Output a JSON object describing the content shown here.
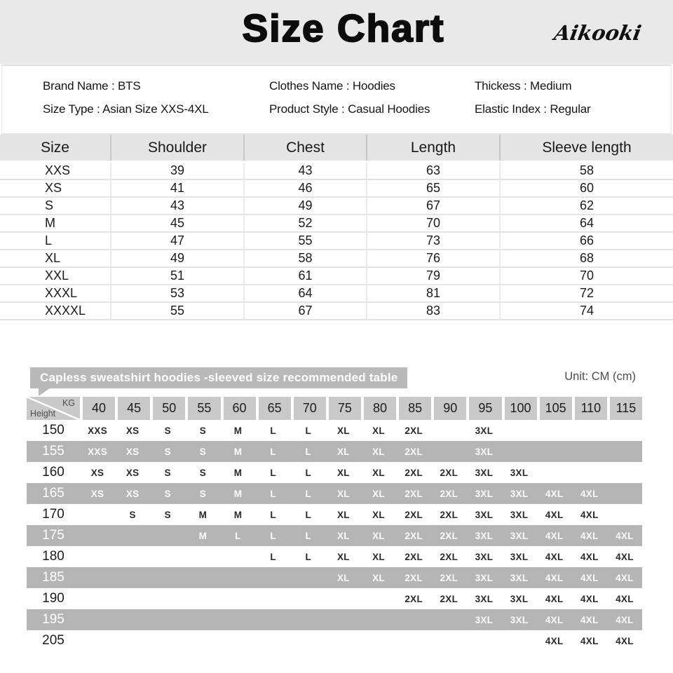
{
  "header": {
    "title": "Size Chart",
    "brand_logo": "Aikooki"
  },
  "product_info": {
    "lines": [
      "Brand Name : BTS",
      "Clothes Name : Hoodies",
      "Thickess : Medium",
      "Size Type : Asian Size XXS-4XL",
      "Product Style : Casual Hoodies",
      "Elastic Index : Regular"
    ]
  },
  "size_table": {
    "headers": [
      "Size",
      "Shoulder",
      "Chest",
      "Length",
      "Sleeve length"
    ],
    "rows": [
      [
        "XXS",
        "39",
        "43",
        "63",
        "58"
      ],
      [
        "XS",
        "41",
        "46",
        "65",
        "60"
      ],
      [
        "S",
        "43",
        "49",
        "67",
        "62"
      ],
      [
        "M",
        "45",
        "52",
        "70",
        "64"
      ],
      [
        "L",
        "47",
        "55",
        "73",
        "66"
      ],
      [
        "XL",
        "49",
        "58",
        "76",
        "68"
      ],
      [
        "XXL",
        "51",
        "61",
        "79",
        "70"
      ],
      [
        "XXXL",
        "53",
        "64",
        "81",
        "72"
      ],
      [
        "XXXXL",
        "55",
        "67",
        "83",
        "74"
      ]
    ]
  },
  "recommend_table": {
    "title": "Capless sweatshirt hoodies -sleeved size recommended table",
    "unit": "Unit: CM (cm)",
    "corner": {
      "top": "KG",
      "bottom": "Height"
    },
    "weight_columns": [
      "40",
      "45",
      "50",
      "55",
      "60",
      "65",
      "70",
      "75",
      "80",
      "85",
      "90",
      "95",
      "100",
      "105",
      "110",
      "115"
    ],
    "rows": [
      {
        "height": "150",
        "cells": [
          "XXS",
          "XS",
          "S",
          "S",
          "M",
          "L",
          "L",
          "XL",
          "XL",
          "2XL",
          "",
          "3XL",
          "",
          "",
          "",
          ""
        ]
      },
      {
        "height": "155",
        "cells": [
          "XXS",
          "XS",
          "S",
          "S",
          "M",
          "L",
          "L",
          "XL",
          "XL",
          "2XL",
          "",
          "3XL",
          "",
          "",
          "",
          ""
        ]
      },
      {
        "height": "160",
        "cells": [
          "XS",
          "XS",
          "S",
          "S",
          "M",
          "L",
          "L",
          "XL",
          "XL",
          "2XL",
          "2XL",
          "3XL",
          "3XL",
          "",
          "",
          ""
        ]
      },
      {
        "height": "165",
        "cells": [
          "XS",
          "XS",
          "S",
          "S",
          "M",
          "L",
          "L",
          "XL",
          "XL",
          "2XL",
          "2XL",
          "3XL",
          "3XL",
          "4XL",
          "4XL",
          ""
        ]
      },
      {
        "height": "170",
        "cells": [
          "",
          "S",
          "S",
          "M",
          "M",
          "L",
          "L",
          "XL",
          "XL",
          "2XL",
          "2XL",
          "3XL",
          "3XL",
          "4XL",
          "4XL",
          ""
        ]
      },
      {
        "height": "175",
        "cells": [
          "",
          "",
          "",
          "M",
          "L",
          "L",
          "L",
          "XL",
          "XL",
          "2XL",
          "2XL",
          "3XL",
          "3XL",
          "4XL",
          "4XL",
          "4XL"
        ]
      },
      {
        "height": "180",
        "cells": [
          "",
          "",
          "",
          "",
          "",
          "L",
          "L",
          "XL",
          "XL",
          "2XL",
          "2XL",
          "3XL",
          "3XL",
          "4XL",
          "4XL",
          "4XL"
        ]
      },
      {
        "height": "185",
        "cells": [
          "",
          "",
          "",
          "",
          "",
          "",
          "",
          "XL",
          "XL",
          "2XL",
          "2XL",
          "3XL",
          "3XL",
          "4XL",
          "4XL",
          "4XL"
        ]
      },
      {
        "height": "190",
        "cells": [
          "",
          "",
          "",
          "",
          "",
          "",
          "",
          "",
          "",
          "2XL",
          "2XL",
          "3XL",
          "3XL",
          "4XL",
          "4XL",
          "4XL"
        ]
      },
      {
        "height": "195",
        "cells": [
          "",
          "",
          "",
          "",
          "",
          "",
          "",
          "",
          "",
          "",
          "",
          "3XL",
          "3XL",
          "4XL",
          "4XL",
          "4XL"
        ]
      },
      {
        "height": "205",
        "cells": [
          "",
          "",
          "",
          "",
          "",
          "",
          "",
          "",
          "",
          "",
          "",
          "",
          "",
          "4XL",
          "4XL",
          "4XL"
        ]
      }
    ]
  },
  "colors": {
    "page_band": "#e9e9e9",
    "table_header_bg": "#e5e5e5",
    "banner_gray": "#b9b9b9",
    "header_box_gray": "#c9c9c9",
    "band_row_gray": "#b5b5b5"
  }
}
